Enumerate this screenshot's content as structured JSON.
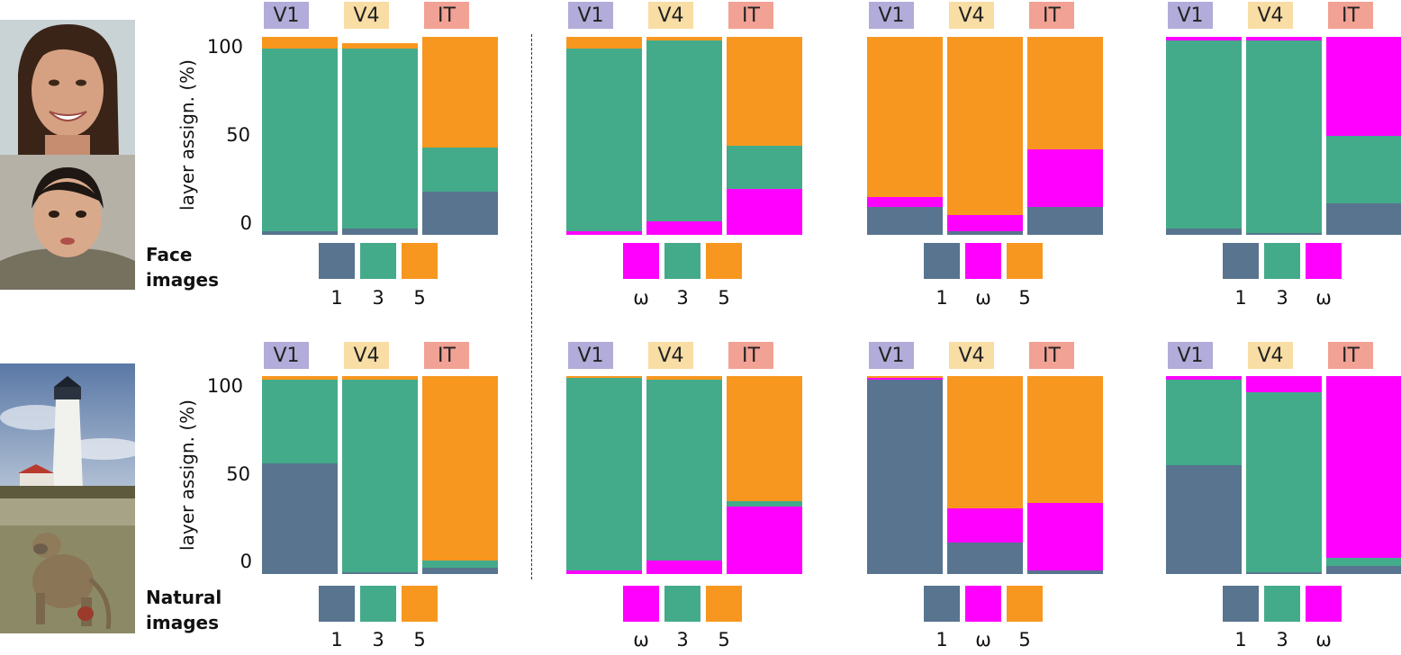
{
  "rows": [
    {
      "title_line1": "Face",
      "title_line2": "images",
      "ylabel": "layer assign. (%)",
      "yticks": [
        "100",
        "50",
        "0"
      ],
      "photos": [
        "face-woman-photo",
        "face-child-photo"
      ]
    },
    {
      "title_line1": "Natural",
      "title_line2": "images",
      "ylabel": "layer assign. (%)",
      "yticks": [
        "100",
        "50",
        "0"
      ],
      "photos": [
        "lighthouse-photo",
        "baboon-photo"
      ]
    }
  ],
  "areas": [
    {
      "label": "V1",
      "color": "#b1acd9"
    },
    {
      "label": "V4",
      "color": "#f8dda4"
    },
    {
      "label": "IT",
      "color": "#f1a294"
    }
  ],
  "colors": {
    "1": "#58748f",
    "3": "#44ab8a",
    "5": "#f7971f",
    "ω": "#ff00ff"
  },
  "chart_data": [
    {
      "type": "bar",
      "stacked": true,
      "row": "Face images",
      "group": 1,
      "layers": [
        "1",
        "3",
        "5"
      ],
      "categories": [
        "V1",
        "V4",
        "IT"
      ],
      "ylim": [
        0,
        100
      ],
      "series": [
        {
          "values": [
            2,
            3,
            22
          ]
        },
        {
          "values": [
            92,
            91,
            22
          ]
        },
        {
          "values": [
            6,
            3,
            56
          ]
        }
      ]
    },
    {
      "type": "bar",
      "stacked": true,
      "row": "Face images",
      "group": 2,
      "layers": [
        "ω",
        "3",
        "5"
      ],
      "categories": [
        "V1",
        "V4",
        "IT"
      ],
      "ylim": [
        0,
        100
      ],
      "series": [
        {
          "values": [
            2,
            7,
            23
          ]
        },
        {
          "values": [
            92,
            91,
            22
          ]
        },
        {
          "values": [
            6,
            2,
            55
          ]
        }
      ]
    },
    {
      "type": "bar",
      "stacked": true,
      "row": "Face images",
      "group": 3,
      "layers": [
        "1",
        "ω",
        "5"
      ],
      "categories": [
        "V1",
        "V4",
        "IT"
      ],
      "ylim": [
        0,
        100
      ],
      "series": [
        {
          "values": [
            14,
            2,
            14
          ]
        },
        {
          "values": [
            5,
            8,
            29
          ]
        },
        {
          "values": [
            81,
            90,
            57
          ]
        }
      ]
    },
    {
      "type": "bar",
      "stacked": true,
      "row": "Face images",
      "group": 4,
      "layers": [
        "1",
        "3",
        "ω"
      ],
      "categories": [
        "V1",
        "V4",
        "IT"
      ],
      "ylim": [
        0,
        100
      ],
      "series": [
        {
          "values": [
            3,
            1,
            16
          ]
        },
        {
          "values": [
            95,
            97,
            34
          ]
        },
        {
          "values": [
            2,
            2,
            50
          ]
        }
      ]
    },
    {
      "type": "bar",
      "stacked": true,
      "row": "Natural images",
      "group": 1,
      "layers": [
        "1",
        "3",
        "5"
      ],
      "categories": [
        "V1",
        "V4",
        "IT"
      ],
      "ylim": [
        0,
        100
      ],
      "series": [
        {
          "values": [
            56,
            1,
            3
          ]
        },
        {
          "values": [
            42,
            97,
            4
          ]
        },
        {
          "values": [
            2,
            2,
            93
          ]
        }
      ]
    },
    {
      "type": "bar",
      "stacked": true,
      "row": "Natural images",
      "group": 2,
      "layers": [
        "ω",
        "3",
        "5"
      ],
      "categories": [
        "V1",
        "V4",
        "IT"
      ],
      "ylim": [
        0,
        100
      ],
      "series": [
        {
          "values": [
            2,
            7,
            34
          ]
        },
        {
          "values": [
            97,
            91,
            3
          ]
        },
        {
          "values": [
            1,
            2,
            63
          ]
        }
      ]
    },
    {
      "type": "bar",
      "stacked": true,
      "row": "Natural images",
      "group": 3,
      "layers": [
        "1",
        "ω",
        "5"
      ],
      "categories": [
        "V1",
        "V4",
        "IT"
      ],
      "ylim": [
        0,
        100
      ],
      "series": [
        {
          "values": [
            98,
            16,
            2
          ]
        },
        {
          "values": [
            1,
            17,
            34
          ]
        },
        {
          "values": [
            1,
            67,
            64
          ]
        }
      ]
    },
    {
      "type": "bar",
      "stacked": true,
      "row": "Natural images",
      "group": 4,
      "layers": [
        "1",
        "3",
        "ω"
      ],
      "categories": [
        "V1",
        "V4",
        "IT"
      ],
      "ylim": [
        0,
        100
      ],
      "series": [
        {
          "values": [
            55,
            1,
            4
          ]
        },
        {
          "values": [
            43,
            91,
            4
          ]
        },
        {
          "values": [
            2,
            8,
            92
          ]
        }
      ]
    }
  ]
}
